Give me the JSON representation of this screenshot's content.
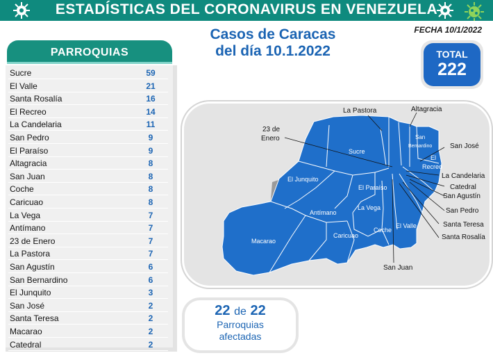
{
  "header": {
    "title": "ESTADÍSTICAS DEL CORONAVIRUS EN VENEZUELA"
  },
  "fecha": "FECHA 10/1/2022",
  "casos": {
    "line1": "Casos de Caracas",
    "line2": "del día 10.1.2022"
  },
  "total": {
    "label": "TOTAL",
    "value": "222"
  },
  "parroquias": {
    "heading": "PARROQUIAS",
    "rows": [
      {
        "name": "Sucre",
        "value": "59"
      },
      {
        "name": "El Valle",
        "value": "21"
      },
      {
        "name": "Santa Rosalía",
        "value": "16"
      },
      {
        "name": "El Recreo",
        "value": "14"
      },
      {
        "name": "La Candelaria",
        "value": "11"
      },
      {
        "name": "San Pedro",
        "value": "9"
      },
      {
        "name": "El Paraíso",
        "value": "9"
      },
      {
        "name": "Altagracia",
        "value": "8"
      },
      {
        "name": "San Juan",
        "value": "8"
      },
      {
        "name": "Coche",
        "value": "8"
      },
      {
        "name": "Caricuao",
        "value": "8"
      },
      {
        "name": "La Vega",
        "value": "7"
      },
      {
        "name": "Antímano",
        "value": "7"
      },
      {
        "name": "23 de Enero",
        "value": "7"
      },
      {
        "name": "La Pastora",
        "value": "7"
      },
      {
        "name": "San Agustín",
        "value": "6"
      },
      {
        "name": "San Bernardino",
        "value": "6"
      },
      {
        "name": "El Junquito",
        "value": "3"
      },
      {
        "name": "San José",
        "value": "2"
      },
      {
        "name": "Santa Teresa",
        "value": "2"
      },
      {
        "name": "Macarao",
        "value": "2"
      },
      {
        "name": "Catedral",
        "value": "2"
      }
    ]
  },
  "map": {
    "inner_labels": {
      "sucre": "Sucre",
      "san_bernardino_1": "San",
      "san_bernardino_2": "Bernardino",
      "el_recreo_1": "El",
      "el_recreo_2": "Recreo",
      "el_junquito": "El Junquito",
      "el_paraiso": "El Paraíso",
      "la_vega": "La Vega",
      "antimano": "Antímano",
      "caricuao": "Caricuao",
      "coche": "Coche",
      "el_valle": "El Valle",
      "macarao": "Macarao"
    },
    "outer_labels": {
      "la_pastora": "La Pastora",
      "altagracia": "Altagracia",
      "enero_1": "23 de",
      "enero_2": "Enero",
      "san_jose": "San José",
      "la_candelaria": "La Candelaria",
      "catedral": "Catedral",
      "san_agustin": "San Agustín",
      "san_pedro": "San Pedro",
      "santa_teresa": "Santa Teresa",
      "santa_rosalia": "Santa Rosalía",
      "san_juan": "San Juan"
    },
    "fill_color": "#1f6fca",
    "gray_color": "#9a9a9a"
  },
  "afectadas": {
    "count": "22",
    "de": "de",
    "total": "22",
    "line1": "Parroquias",
    "line2": "afectadas"
  },
  "colors": {
    "header": "#0f8a7e",
    "accent": "#1b64b3",
    "total_bg": "#1e68c4"
  }
}
